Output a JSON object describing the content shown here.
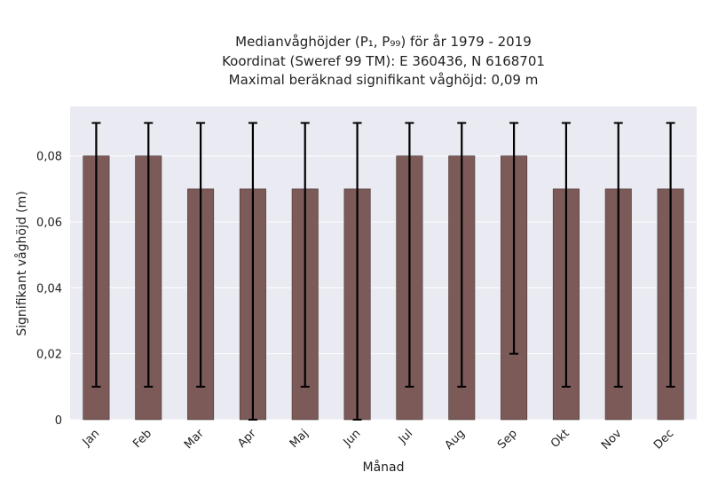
{
  "chart_data": {
    "type": "bar",
    "title_lines": [
      "Medianvåghöjder (P₁, P₉₉) för år 1979 - 2019",
      "Koordinat (Sweref 99 TM): E 360436, N 6168701",
      "Maximal beräknad signifikant våghöjd: 0,09 m"
    ],
    "xlabel": "Månad",
    "ylabel": "Signifikant våghöjd (m)",
    "categories": [
      "Jan",
      "Feb",
      "Mar",
      "Apr",
      "Maj",
      "Jun",
      "Jul",
      "Aug",
      "Sep",
      "Okt",
      "Nov",
      "Dec"
    ],
    "values": [
      0.08,
      0.08,
      0.07,
      0.07,
      0.07,
      0.07,
      0.08,
      0.08,
      0.08,
      0.07,
      0.07,
      0.07
    ],
    "err_low": [
      0.01,
      0.01,
      0.01,
      0.0,
      0.01,
      0.0,
      0.01,
      0.01,
      0.02,
      0.01,
      0.01,
      0.01
    ],
    "err_high": [
      0.09,
      0.09,
      0.09,
      0.09,
      0.09,
      0.09,
      0.09,
      0.09,
      0.09,
      0.09,
      0.09,
      0.09
    ],
    "ylim": [
      0,
      0.095
    ],
    "yticks": [
      0,
      0.02,
      0.04,
      0.06,
      0.08
    ],
    "ytick_labels": [
      "0",
      "0,02",
      "0,04",
      "0,06",
      "0,08"
    ],
    "grid": true,
    "bar_color": "#7b5a58",
    "plot_background": "#eaeaf2",
    "error_bar_color": "#000000"
  }
}
